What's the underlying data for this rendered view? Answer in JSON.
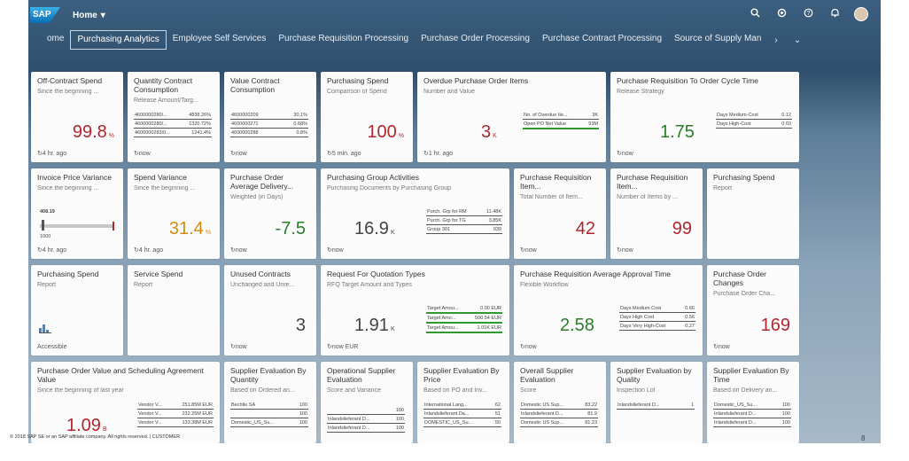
{
  "shell": {
    "logo": "SAP",
    "home_label": "Home",
    "home_caret": "▾",
    "icons": [
      "search-icon",
      "settings-icon",
      "help-icon",
      "notification-icon",
      "user-avatar"
    ]
  },
  "tabs": [
    {
      "label": "ome"
    },
    {
      "label": "Purchasing Analytics"
    },
    {
      "label": "Employee Self Services"
    },
    {
      "label": "Purchase Requisition Processing"
    },
    {
      "label": "Purchase Order Processing"
    },
    {
      "label": "Purchase Contract Processing"
    },
    {
      "label": "Source of Supply Man"
    }
  ],
  "tab_nav": {
    "next": "›",
    "overflow": "⌄"
  },
  "tiles": {
    "t1": {
      "title": "Off-Contract Spend",
      "sub": "Since the beginning ...",
      "value": "99.8",
      "unit": "%",
      "foot": "↻4 hr. ago"
    },
    "t2": {
      "title": "Quantity Contract Consumption",
      "sub": "Release Amount/Targ...",
      "rows": [
        [
          "4600000280/...",
          "4838.26%"
        ],
        [
          "4600000280/...",
          "1320.72%"
        ],
        [
          "4600000283/0...",
          "1241.4%"
        ]
      ],
      "foot": "↻now"
    },
    "t3": {
      "title": "Value Contract Consumption",
      "rows": [
        [
          "4600000209",
          "30.1%"
        ],
        [
          "4600000271",
          "0.68%"
        ],
        [
          "4600000288",
          "0.8%"
        ]
      ],
      "foot": "↻now"
    },
    "t4": {
      "title": "Purchasing Spend",
      "sub": "Comparison of Spend",
      "value": "100",
      "unit": "%",
      "foot": "↻5 min. ago"
    },
    "t5": {
      "title": "Overdue Purchase Order Items",
      "sub": "Number and Value",
      "value": "3",
      "unit": "K",
      "rows": [
        [
          "No. of Overdue Ite...",
          "3K"
        ],
        [
          "Open PO Net Value",
          "93M"
        ]
      ],
      "foot": "↻1 hr. ago"
    },
    "t6": {
      "title": "Purchase Requisition To Order Cycle Time",
      "sub": "Release Strategy",
      "value": "1.75",
      "rows": [
        [
          "Days Medium-Cost",
          "0.12"
        ],
        [
          "Days High-Cost",
          "0.03"
        ]
      ],
      "foot": "↻now"
    },
    "t7": {
      "title": "Invoice Price Variance",
      "sub": "Since the beginning ...",
      "actual": "408.19",
      "target": "1000",
      "actual_fraction": 0.41,
      "foot": "↻4 hr. ago"
    },
    "t8": {
      "title": "Spend Variance",
      "sub": "Since the beginning ...",
      "value": "31.4",
      "unit": "%",
      "foot": "↻4 hr. ago"
    },
    "t9": {
      "title": "Purchase Order Average Delivery...",
      "sub": "Weighted (in Days)",
      "value": "-7.5",
      "foot": "↻now"
    },
    "t10": {
      "title": "Purchasing Group Activities",
      "sub": "Purchasing Documents by Purchasing Group",
      "value": "16.9",
      "unit": "K",
      "rows": [
        [
          "Purch. Grp for RM",
          "11.48K"
        ],
        [
          "Purch. Grp for TG",
          "3.85K"
        ],
        [
          "Group 301",
          "939"
        ]
      ],
      "foot": "↻now"
    },
    "t11": {
      "title": "Purchase Requisition Item...",
      "sub": "Total Number of Item...",
      "value": "42",
      "foot": "↻now"
    },
    "t12": {
      "title": "Purchase Requisition Item...",
      "sub": "Number of Items by ...",
      "value": "99",
      "foot": "↻now"
    },
    "t13": {
      "title": "Purchasing Spend",
      "sub": "Report"
    },
    "t14": {
      "title": "Purchasing Spend",
      "sub": "Report",
      "foot": "Accessible"
    },
    "t15": {
      "title": "Service Spend",
      "sub": "Report"
    },
    "t16": {
      "title": "Unused Contracts",
      "sub": "Unchanged and Unre...",
      "value": "3",
      "foot": "↻now"
    },
    "t17": {
      "title": "Request For Quotation Types",
      "sub": "RFQ Target Amount and Types",
      "value": "1.91",
      "unit": "K",
      "rows": [
        [
          "Target Amou...",
          "0.00 EUR"
        ],
        [
          "Target Amo...",
          "500.54 EUR"
        ],
        [
          "Target Amou...",
          "1.01K EUR"
        ]
      ],
      "foot": "↻now EUR"
    },
    "t18": {
      "title": "Purchase Requisition Average Approval Time",
      "sub": "Flexible Workflow",
      "value": "2.58",
      "rows": [
        [
          "Days Medium Cost",
          "0.66"
        ],
        [
          "Days High Cost",
          "0.56"
        ],
        [
          "Days Very High-Cost",
          "0.27"
        ]
      ],
      "foot": "↻now"
    },
    "t19": {
      "title": "Purchase Order Changes",
      "sub": "Purchase Order Cha...",
      "value": "169",
      "foot": "↻now"
    },
    "t20": {
      "title": "Purchase Order Value and Scheduling Agreement Value",
      "sub": "Since the beginning of last year",
      "value": "1.09",
      "unit": "B",
      "rows": [
        [
          "Vendor V...",
          "251.85M EUR"
        ],
        [
          "Vendor V...",
          "232.25M EUR"
        ],
        [
          "Vendor V...",
          "133.38M EUR"
        ]
      ]
    },
    "t21": {
      "title": "Supplier Evaluation By Quantity",
      "sub": "Based on Ordered an...",
      "rows": [
        [
          "Bechtle SA",
          "100"
        ],
        [
          "",
          "100"
        ],
        [
          "Domestic_US_Su...",
          "100"
        ]
      ]
    },
    "t22": {
      "title": "Operational Supplier Evaluation",
      "sub": "Score and Variance",
      "rows": [
        [
          "",
          "100"
        ],
        [
          "Inlandslieferant D...",
          "100"
        ],
        [
          "Inlandslieferant D...",
          "100"
        ]
      ]
    },
    "t23": {
      "title": "Supplier Evaluation By Price",
      "sub": "Based on PO and Inv...",
      "rows": [
        [
          "International Lang...",
          "62"
        ],
        [
          "Inlandslieferant Da...",
          "51"
        ],
        [
          "DOMESTIC_US_Su...",
          "50"
        ]
      ]
    },
    "t24": {
      "title": "Overall Supplier Evaluation",
      "sub": "Score",
      "rows": [
        [
          "Domestic US Sup...",
          "83.22"
        ],
        [
          "Inlandslieferant D...",
          "81.9"
        ],
        [
          "Domestic US Sup...",
          "81.23"
        ]
      ]
    },
    "t25": {
      "title": "Supplier Evaluation by Quality",
      "sub": "Inspection Lot",
      "rows": [
        [
          "Inlandslieferant D...",
          "1"
        ]
      ]
    },
    "t26": {
      "title": "Supplier Evaluation By Time",
      "sub": "Based on Delivery an...",
      "rows": [
        [
          "Domestic_US_Su...",
          "100"
        ],
        [
          "Inlandslieferant D...",
          "100"
        ],
        [
          "Inlandslieferant D...",
          "100"
        ]
      ]
    }
  },
  "footer": {
    "copyright": "© 2018 SAP SE or an SAP affiliate company. All rights reserved.  |  CUSTOMER",
    "page": "8"
  }
}
